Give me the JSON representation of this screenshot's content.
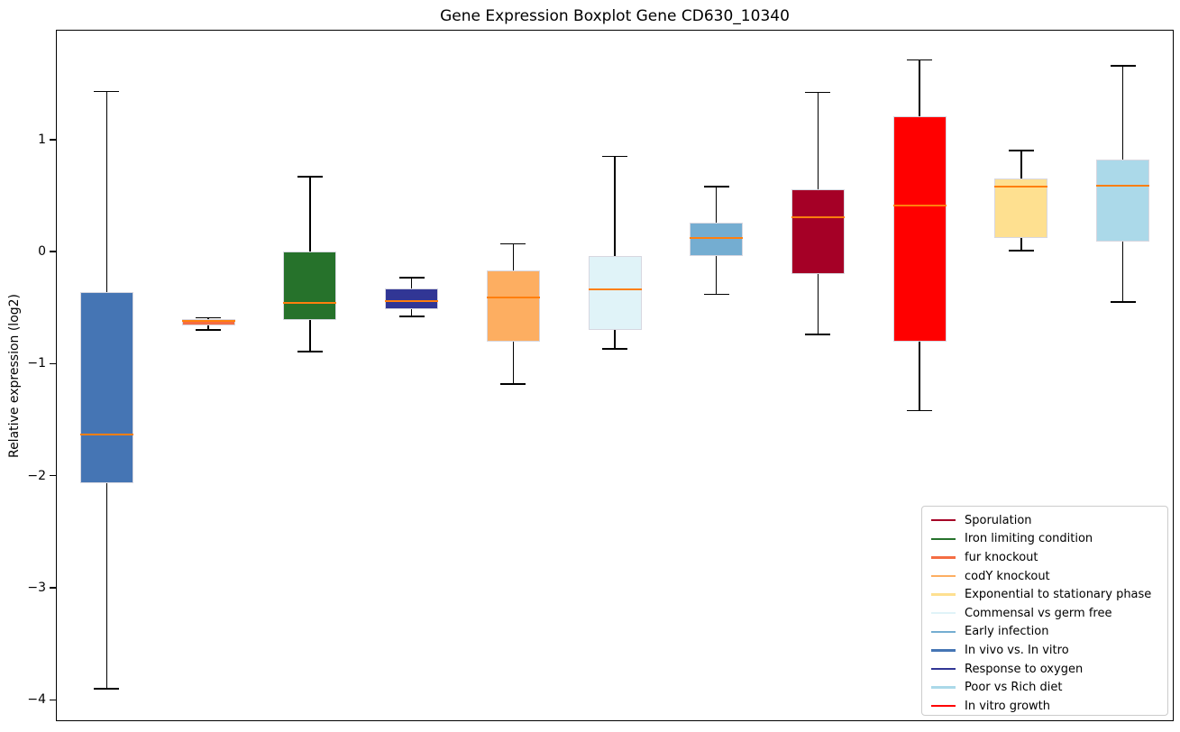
{
  "figure": {
    "background": "#ffffff"
  },
  "chart_data": {
    "type": "boxplot",
    "title": "Gene Expression Boxplot Gene CD630_10340",
    "xlabel": "",
    "ylabel": "Relative expression (log2)",
    "yticks": [
      1,
      0,
      -1,
      -2,
      -3,
      -4
    ],
    "ylim": [
      -4.19,
      1.98
    ],
    "grid": false,
    "median_color": "#ff7f0e",
    "boxes": [
      {
        "label": "In vivo vs. In vitro",
        "color": "#4575b4",
        "whisker_low": -3.9,
        "q1": -2.07,
        "median": -1.63,
        "q3": -0.36,
        "whisker_high": 1.43
      },
      {
        "label": "fur knockout",
        "color": "#f46d43",
        "whisker_low": -0.7,
        "q1": -0.655,
        "median": -0.62,
        "q3": -0.6,
        "whisker_high": -0.59
      },
      {
        "label": "Iron limiting condition",
        "color": "#26722b",
        "whisker_low": -0.89,
        "q1": -0.61,
        "median": -0.46,
        "q3": 0.0,
        "whisker_high": 0.67
      },
      {
        "label": "Response to oxygen",
        "color": "#313695",
        "whisker_low": -0.58,
        "q1": -0.51,
        "median": -0.44,
        "q3": -0.33,
        "whisker_high": -0.23
      },
      {
        "label": "codY knockout",
        "color": "#fdae61",
        "whisker_low": -1.18,
        "q1": -0.8,
        "median": -0.41,
        "q3": -0.17,
        "whisker_high": 0.07
      },
      {
        "label": "Commensal vs germ free",
        "color": "#e0f3f8",
        "whisker_low": -0.87,
        "q1": -0.7,
        "median": -0.34,
        "q3": -0.04,
        "whisker_high": 0.85
      },
      {
        "label": "Early infection",
        "color": "#74add1",
        "whisker_low": -0.38,
        "q1": -0.04,
        "median": 0.12,
        "q3": 0.26,
        "whisker_high": 0.58
      },
      {
        "label": "Sporulation",
        "color": "#a50026",
        "whisker_low": -0.74,
        "q1": -0.2,
        "median": 0.31,
        "q3": 0.56,
        "whisker_high": 1.42
      },
      {
        "label": "In vitro growth",
        "color": "#ff0000",
        "whisker_low": -1.42,
        "q1": -0.8,
        "median": 0.41,
        "q3": 1.21,
        "whisker_high": 1.71
      },
      {
        "label": "Exponential to stationary phase",
        "color": "#fee090",
        "whisker_low": 0.01,
        "q1": 0.12,
        "median": 0.58,
        "q3": 0.65,
        "whisker_high": 0.9
      },
      {
        "label": "Poor vs Rich diet",
        "color": "#abd9e9",
        "whisker_low": -0.45,
        "q1": 0.09,
        "median": 0.59,
        "q3": 0.82,
        "whisker_high": 1.66
      }
    ],
    "legend": {
      "position": "lower right",
      "entries": [
        {
          "label": "Sporulation",
          "color": "#a50026"
        },
        {
          "label": "Iron limiting condition",
          "color": "#26722b"
        },
        {
          "label": "fur knockout",
          "color": "#f46d43"
        },
        {
          "label": "codY knockout",
          "color": "#fdae61"
        },
        {
          "label": "Exponential to stationary phase",
          "color": "#fee090"
        },
        {
          "label": "Commensal vs germ free",
          "color": "#e0f3f8"
        },
        {
          "label": "Early infection",
          "color": "#74add1"
        },
        {
          "label": "In vivo vs. In vitro",
          "color": "#4575b4"
        },
        {
          "label": "Response to oxygen",
          "color": "#313695"
        },
        {
          "label": "Poor vs Rich diet",
          "color": "#abd9e9"
        },
        {
          "label": "In vitro growth",
          "color": "#ff0000"
        }
      ]
    }
  }
}
